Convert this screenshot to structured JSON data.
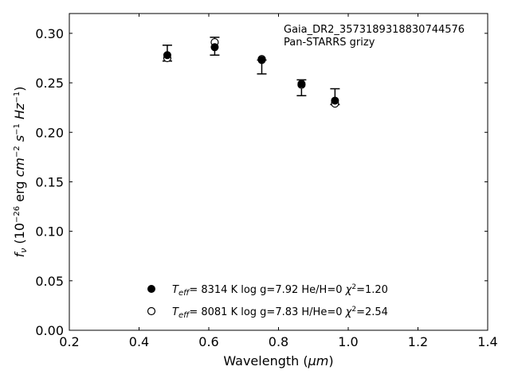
{
  "chart_data": {
    "type": "scatter",
    "xlim": [
      0.2,
      1.4
    ],
    "ylim": [
      0.0,
      0.32
    ],
    "x_ticks": [
      0.2,
      0.4,
      0.6,
      0.8,
      1.0,
      1.2,
      1.4
    ],
    "y_ticks": [
      0.0,
      0.05,
      0.1,
      0.15,
      0.2,
      0.25,
      0.3
    ],
    "x_tick_labels": [
      "0.2",
      "0.4",
      "0.6",
      "0.8",
      "1.0",
      "1.2",
      "1.4"
    ],
    "y_tick_labels": [
      "0.00",
      "0.05",
      "0.10",
      "0.15",
      "0.20",
      "0.25",
      "0.30"
    ],
    "xlabel": "Wavelength (μm)",
    "ylabel": "fν (10⁻²⁶ erg cm⁻² s⁻¹ Hz⁻¹)",
    "annotation_lines": [
      "Gaia_DR2_3573189318830744576",
      "Pan-STARRS grizy"
    ],
    "grid": false,
    "legend_placement": "lower-center",
    "observed": {
      "x": [
        0.481,
        0.617,
        0.752,
        0.866,
        0.962
      ],
      "y": [
        0.28,
        0.287,
        0.266,
        0.245,
        0.236
      ],
      "yerr": [
        0.008,
        0.009,
        0.007,
        0.008,
        0.008
      ]
    },
    "series": [
      {
        "marker": "filled-circle",
        "x": [
          0.481,
          0.617,
          0.752,
          0.866,
          0.962
        ],
        "y": [
          0.278,
          0.286,
          0.273,
          0.249,
          0.232
        ],
        "legend": {
          "teff_value": "8314 K",
          "logg": "log g=7.92",
          "composition": "He/H=0",
          "chi2": "=1.20"
        }
      },
      {
        "marker": "open-circle",
        "x": [
          0.481,
          0.617,
          0.752,
          0.866,
          0.962
        ],
        "y": [
          0.275,
          0.291,
          0.274,
          0.248,
          0.229
        ],
        "legend": {
          "teff_value": "8081 K",
          "logg": "log g=7.83",
          "composition": "H/He=0",
          "chi2": "=2.54"
        }
      }
    ]
  }
}
